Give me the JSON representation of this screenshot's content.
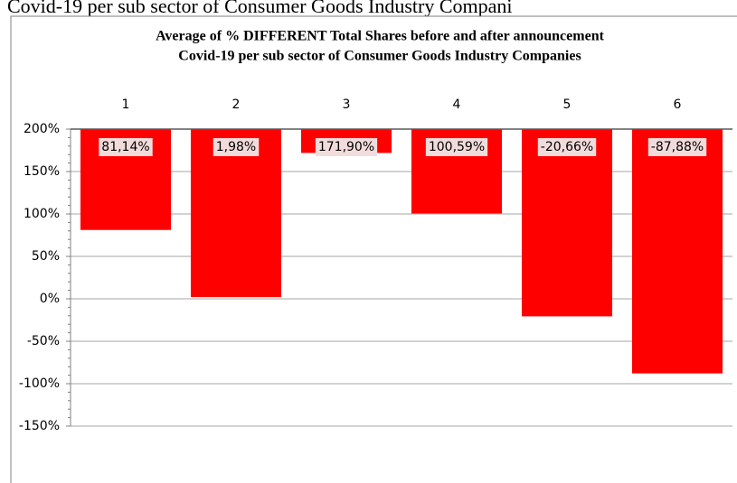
{
  "page_caption": "Covid-19 per sub sector of Consumer Goods Industry Compani",
  "chart_data": {
    "type": "bar",
    "title": [
      "Average of % DIFFERENT Total Shares before and after announcement",
      "Covid-19 per sub sector of Consumer Goods Industry Companies"
    ],
    "categories": [
      "1",
      "2",
      "3",
      "4",
      "5",
      "6"
    ],
    "values": [
      81.14,
      1.98,
      171.9,
      100.59,
      -20.66,
      -87.88
    ],
    "value_labels": [
      "81,14%",
      "1,98%",
      "171,90%",
      "100,59%",
      "-20,66%",
      "-87,88%"
    ],
    "color": "#ff0000",
    "ylim": [
      -150,
      200
    ],
    "yticks": [
      {
        "value": 200,
        "label": "200%"
      },
      {
        "value": 150,
        "label": "150%"
      },
      {
        "value": 100,
        "label": "100%"
      },
      {
        "value": 50,
        "label": "50%"
      },
      {
        "value": 0,
        "label": "0%"
      },
      {
        "value": -50,
        "label": "-50%"
      },
      {
        "value": -100,
        "label": "-100%"
      },
      {
        "value": -150,
        "label": "-150%"
      }
    ],
    "grid": true,
    "x_axis_position": "top"
  }
}
